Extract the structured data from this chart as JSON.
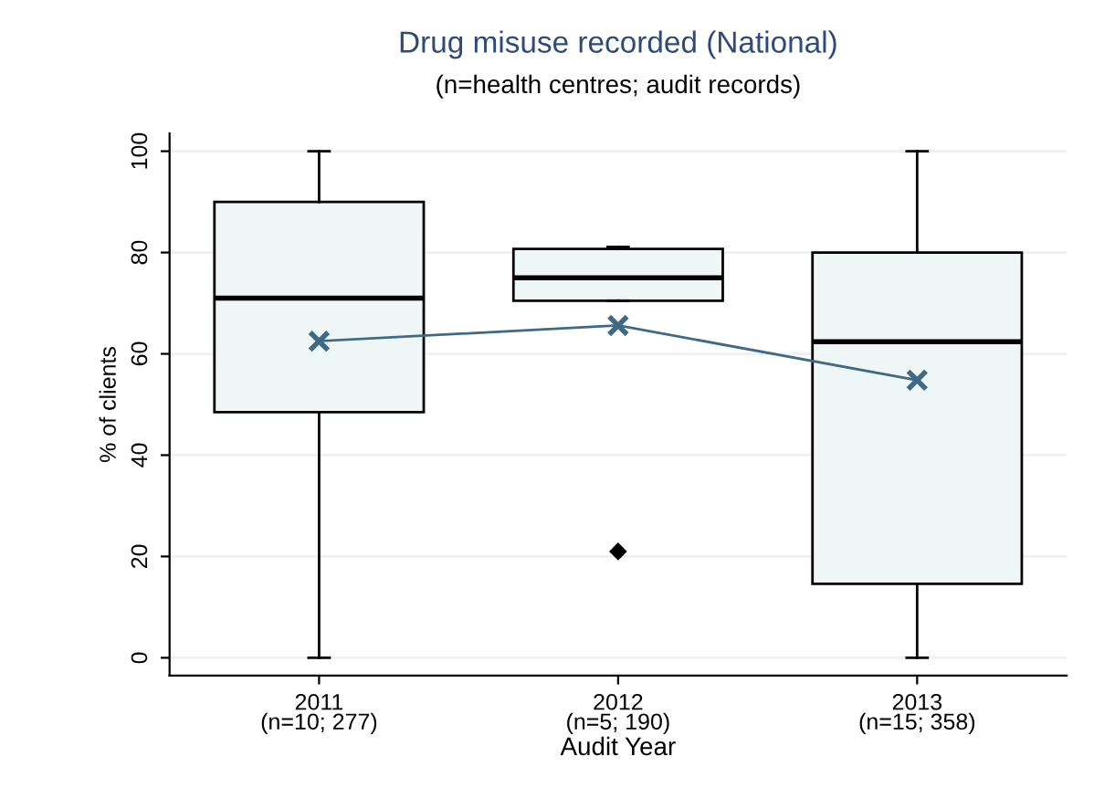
{
  "chart_data": {
    "type": "box",
    "title": "Drug misuse recorded (National)",
    "subtitle": "(n=health centres; audit records)",
    "xlabel": "Audit Year",
    "ylabel": "% of clients",
    "categories": [
      "2011\n(n=10; 277)",
      "2012\n(n=5; 190)",
      "2013\n(n=15; 358)"
    ],
    "ylim": [
      -3.5,
      103.5
    ],
    "yticks": [
      0,
      20,
      40,
      60,
      80,
      100
    ],
    "grid": "y",
    "legend": false,
    "series": [
      {
        "color": "#eef6f6",
        "boxes": [
          {
            "low": 0,
            "q1": 48.5,
            "median": 71,
            "q3": 90,
            "high": 100
          },
          {
            "low": 70.5,
            "q1": 70.5,
            "median": 75,
            "q3": 80.7,
            "high": 81.1,
            "outliers": [
              21
            ]
          },
          {
            "low": 0,
            "q1": 14.6,
            "median": 62.4,
            "q3": 80,
            "high": 100
          }
        ]
      },
      {
        "type": "line",
        "color": "#3e6a86",
        "marker": "cross",
        "values": [
          62.5,
          65.6,
          54.8
        ]
      }
    ]
  }
}
